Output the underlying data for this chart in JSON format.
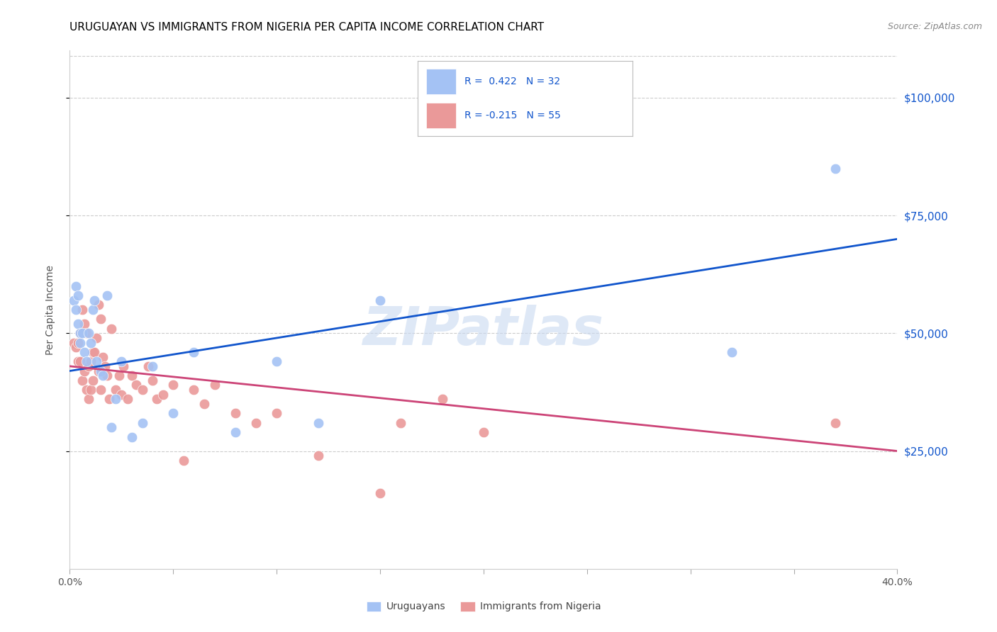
{
  "title": "URUGUAYAN VS IMMIGRANTS FROM NIGERIA PER CAPITA INCOME CORRELATION CHART",
  "source": "Source: ZipAtlas.com",
  "ylabel": "Per Capita Income",
  "watermark": "ZIPatlas",
  "legend_blue_r": "R =  0.422",
  "legend_blue_n": "N = 32",
  "legend_pink_r": "R = -0.215",
  "legend_pink_n": "N = 55",
  "legend_label_blue": "Uruguayans",
  "legend_label_pink": "Immigrants from Nigeria",
  "yticks": [
    25000,
    50000,
    75000,
    100000
  ],
  "ytick_labels": [
    "$25,000",
    "$50,000",
    "$75,000",
    "$100,000"
  ],
  "blue_color": "#a4c2f4",
  "pink_color": "#ea9999",
  "blue_line_color": "#1155cc",
  "pink_line_color": "#cc4477",
  "background_color": "#ffffff",
  "title_color": "#000000",
  "title_fontsize": 11,
  "xmin": 0.0,
  "xmax": 0.4,
  "ymin": 0,
  "ymax": 110000,
  "blue_x": [
    0.002,
    0.003,
    0.003,
    0.004,
    0.004,
    0.005,
    0.005,
    0.006,
    0.007,
    0.008,
    0.009,
    0.01,
    0.011,
    0.012,
    0.013,
    0.015,
    0.016,
    0.018,
    0.02,
    0.022,
    0.025,
    0.03,
    0.035,
    0.04,
    0.05,
    0.06,
    0.08,
    0.1,
    0.12,
    0.15,
    0.32,
    0.37
  ],
  "blue_y": [
    57000,
    60000,
    55000,
    58000,
    52000,
    50000,
    48000,
    50000,
    46000,
    44000,
    50000,
    48000,
    55000,
    57000,
    44000,
    42000,
    41000,
    58000,
    30000,
    36000,
    44000,
    28000,
    31000,
    43000,
    33000,
    46000,
    29000,
    44000,
    31000,
    57000,
    46000,
    85000
  ],
  "pink_x": [
    0.002,
    0.003,
    0.004,
    0.004,
    0.005,
    0.005,
    0.006,
    0.006,
    0.007,
    0.007,
    0.008,
    0.008,
    0.009,
    0.009,
    0.01,
    0.01,
    0.011,
    0.011,
    0.012,
    0.013,
    0.014,
    0.014,
    0.015,
    0.015,
    0.016,
    0.017,
    0.018,
    0.019,
    0.02,
    0.022,
    0.024,
    0.025,
    0.026,
    0.028,
    0.03,
    0.032,
    0.035,
    0.038,
    0.04,
    0.042,
    0.045,
    0.05,
    0.055,
    0.06,
    0.065,
    0.07,
    0.08,
    0.09,
    0.1,
    0.12,
    0.15,
    0.16,
    0.18,
    0.2,
    0.37
  ],
  "pink_y": [
    48000,
    47000,
    48000,
    44000,
    50000,
    44000,
    55000,
    40000,
    52000,
    42000,
    50000,
    38000,
    43000,
    36000,
    44000,
    38000,
    46000,
    40000,
    46000,
    49000,
    56000,
    42000,
    53000,
    38000,
    45000,
    43000,
    41000,
    36000,
    51000,
    38000,
    41000,
    37000,
    43000,
    36000,
    41000,
    39000,
    38000,
    43000,
    40000,
    36000,
    37000,
    39000,
    23000,
    38000,
    35000,
    39000,
    33000,
    31000,
    33000,
    24000,
    16000,
    31000,
    36000,
    29000,
    31000
  ]
}
